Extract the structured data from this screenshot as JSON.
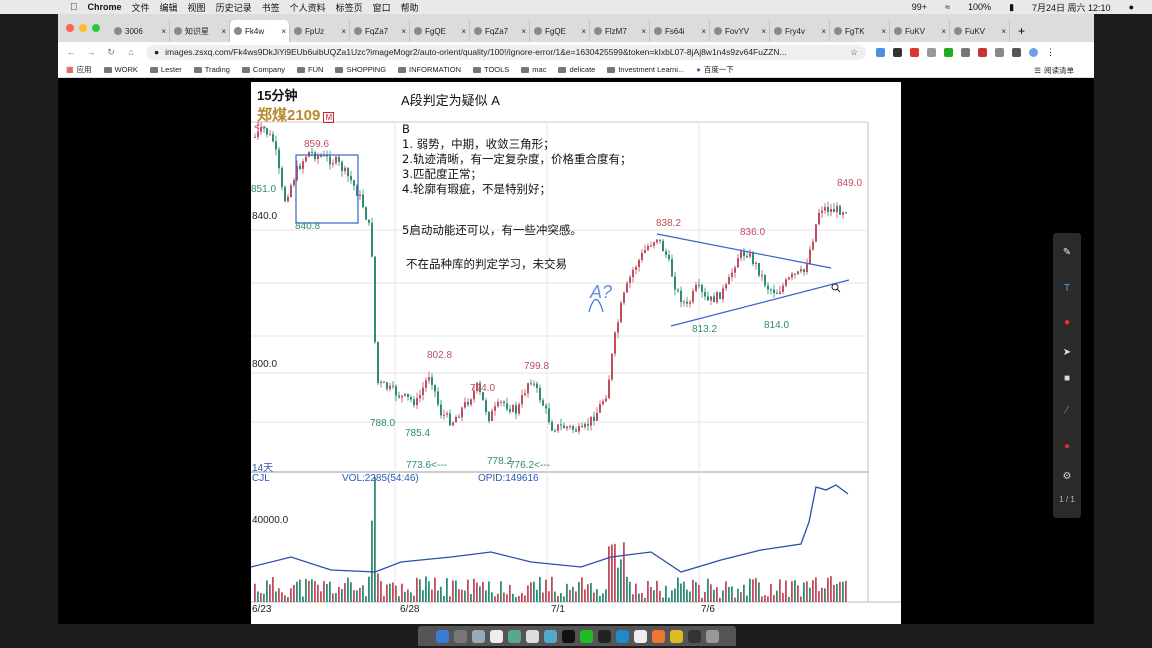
{
  "menubar": {
    "app": "Chrome",
    "items": [
      "文件",
      "编辑",
      "视图",
      "历史记录",
      "书签",
      "个人资料",
      "标签页",
      "窗口",
      "帮助"
    ],
    "battery": "100%",
    "datetime": "7月24日 周六  12:10",
    "badge": "99+"
  },
  "tabs": [
    {
      "label": "3006"
    },
    {
      "label": "知识星"
    },
    {
      "label": "Fk4w"
    },
    {
      "label": "FpUz"
    },
    {
      "label": "FqZa7"
    },
    {
      "label": "FgQE"
    },
    {
      "label": "FqZa7"
    },
    {
      "label": "FgQE"
    },
    {
      "label": "FlzM7"
    },
    {
      "label": "Fs64i"
    },
    {
      "label": "FovYV"
    },
    {
      "label": "Fry4v"
    },
    {
      "label": "FgTK"
    },
    {
      "label": "FuKV"
    },
    {
      "label": "FuKV"
    }
  ],
  "toolbar": {
    "url": "images.zsxq.com/Fk4ws9DkJiYi9EUb6uibUQZa1Uzc?imageMogr2/auto-orient/quality/100!/ignore-error/1&e=1630425599&token=kIxbL07-8jAj8w1n4s9zv64FuZZN..."
  },
  "bookmarks": [
    "应用",
    "WORK",
    "Lester",
    "Trading",
    "Company",
    "FUN",
    "SHOPPING",
    "INFORMATION",
    "TOOLS",
    "mac",
    "delicate",
    "Investment Learni...",
    "百度一下"
  ],
  "reading_list": "阅读清单",
  "chart": {
    "timeframe": "15分钟",
    "symbol": "郑煤2109",
    "symbol_badge": "M",
    "heading": "A段判定为疑似 A",
    "notes": [
      "B",
      "1. 弱势，中期，收敛三角形；",
      "2.轨迹清晰，有一定复杂度，价格重合度有；",
      "3.匹配度正常；",
      "4.轮廓有瑕疵，不是特别好；"
    ],
    "note5": "5启动动能还可以，有一些冲突感。",
    "note6": "不在品种库的判定学习，未交易",
    "hand_label": "A?",
    "price_labels": {
      "p859": "859.6",
      "p851": "851.0",
      "p840": "840.0",
      "p8408": "840.8",
      "p8382": "838.2",
      "p836": "836.0",
      "p849": "849.0",
      "p8132": "813.2",
      "p814": "814.0",
      "p800": "800.0",
      "p8028": "802.8",
      "p794": "794.0",
      "p7998": "799.8",
      "p788": "788.0",
      "p7854": "785.4",
      "p7736": "773.6<---",
      "p778": "778.2",
      "p7762": "776.2<---",
      "days": "14天",
      "arrow": "<--"
    },
    "volume": {
      "cjl": "CJL",
      "vol": "VOL:2285(54:46)",
      "opid": "OPID:149616",
      "axis": "40000.0"
    },
    "dates": [
      "6/23",
      "6/28",
      "7/1",
      "7/6"
    ]
  },
  "viewer": {
    "page": "1 / 1"
  },
  "colors": {
    "up": "#c14d5f",
    "down": "#2e8b74",
    "line": "#2a4fa8",
    "pen": "#3a6fd8"
  },
  "chart_data": {
    "type": "candlestick",
    "title": "郑煤2109",
    "xlabel": "",
    "ylabel": "",
    "categories": [
      "6/23",
      "6/28",
      "7/1",
      "7/6"
    ],
    "ylim": [
      770,
      865
    ],
    "annotations": [
      {
        "label": "859.6",
        "value": 859.6
      },
      {
        "label": "851.0",
        "value": 851.0
      },
      {
        "label": "840.8",
        "value": 840.8
      },
      {
        "label": "802.8",
        "value": 802.8
      },
      {
        "label": "794.0",
        "value": 794.0
      },
      {
        "label": "799.8",
        "value": 799.8
      },
      {
        "label": "788.0",
        "value": 788.0
      },
      {
        "label": "785.4",
        "value": 785.4
      },
      {
        "label": "773.6",
        "value": 773.6
      },
      {
        "label": "778.2",
        "value": 778.2
      },
      {
        "label": "776.2",
        "value": 776.2
      },
      {
        "label": "838.2",
        "value": 838.2
      },
      {
        "label": "813.2",
        "value": 813.2
      },
      {
        "label": "836.0",
        "value": 836.0
      },
      {
        "label": "814.0",
        "value": 814.0
      },
      {
        "label": "849.0",
        "value": 849.0
      }
    ],
    "yticks": [
      840.0,
      800.0
    ],
    "volume_axis_tick": 40000.0
  }
}
